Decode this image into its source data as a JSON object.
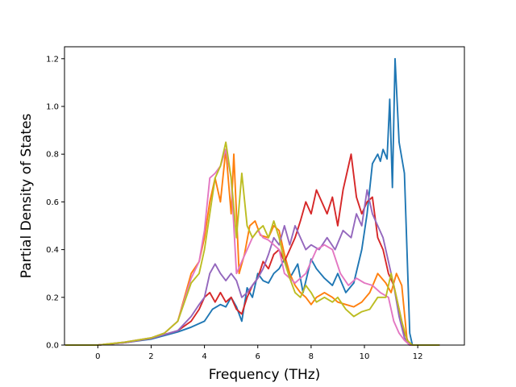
{
  "chart_data": {
    "type": "line",
    "title": "",
    "xlabel": "Frequency (THz)",
    "ylabel": "Partial Density of States",
    "xlim": [
      -1.25,
      13.75
    ],
    "ylim": [
      0.0,
      1.25
    ],
    "xticks": [
      0,
      2,
      4,
      6,
      8,
      10,
      12
    ],
    "yticks": [
      0.0,
      0.2,
      0.4,
      0.6,
      0.8,
      1.0,
      1.2
    ],
    "xtick_labels": [
      "0",
      "2",
      "4",
      "6",
      "8",
      "10",
      "12"
    ],
    "ytick_labels": [
      "0.0",
      "0.2",
      "0.4",
      "0.6",
      "0.8",
      "1.0",
      "1.2"
    ],
    "grid": false,
    "legend": "none",
    "series": [
      {
        "color": "#1f77b4",
        "points": [
          [
            -1.2,
            0
          ],
          [
            0,
            0
          ],
          [
            1,
            0.01
          ],
          [
            2,
            0.025
          ],
          [
            3,
            0.055
          ],
          [
            3.5,
            0.075
          ],
          [
            4,
            0.1
          ],
          [
            4.3,
            0.15
          ],
          [
            4.6,
            0.17
          ],
          [
            4.8,
            0.16
          ],
          [
            5.0,
            0.2
          ],
          [
            5.2,
            0.16
          ],
          [
            5.4,
            0.1
          ],
          [
            5.6,
            0.24
          ],
          [
            5.8,
            0.2
          ],
          [
            6.0,
            0.3
          ],
          [
            6.2,
            0.27
          ],
          [
            6.4,
            0.26
          ],
          [
            6.6,
            0.3
          ],
          [
            6.8,
            0.32
          ],
          [
            7.0,
            0.36
          ],
          [
            7.2,
            0.28
          ],
          [
            7.5,
            0.34
          ],
          [
            7.7,
            0.22
          ],
          [
            8.0,
            0.36
          ],
          [
            8.2,
            0.32
          ],
          [
            8.5,
            0.28
          ],
          [
            8.8,
            0.25
          ],
          [
            9.0,
            0.3
          ],
          [
            9.3,
            0.22
          ],
          [
            9.6,
            0.26
          ],
          [
            9.9,
            0.4
          ],
          [
            10.1,
            0.55
          ],
          [
            10.3,
            0.76
          ],
          [
            10.5,
            0.8
          ],
          [
            10.6,
            0.77
          ],
          [
            10.7,
            0.82
          ],
          [
            10.85,
            0.78
          ],
          [
            10.95,
            1.03
          ],
          [
            11.05,
            0.66
          ],
          [
            11.15,
            1.2
          ],
          [
            11.3,
            0.85
          ],
          [
            11.5,
            0.72
          ],
          [
            11.7,
            0.05
          ],
          [
            11.8,
            0
          ],
          [
            12.8,
            0
          ]
        ]
      },
      {
        "color": "#ff7f0e",
        "points": [
          [
            -1.2,
            0
          ],
          [
            0,
            0
          ],
          [
            1,
            0.012
          ],
          [
            2,
            0.03
          ],
          [
            2.5,
            0.05
          ],
          [
            3,
            0.1
          ],
          [
            3.5,
            0.3
          ],
          [
            3.8,
            0.35
          ],
          [
            4.0,
            0.45
          ],
          [
            4.2,
            0.6
          ],
          [
            4.4,
            0.7
          ],
          [
            4.6,
            0.6
          ],
          [
            4.8,
            0.82
          ],
          [
            5.0,
            0.55
          ],
          [
            5.1,
            0.8
          ],
          [
            5.3,
            0.3
          ],
          [
            5.5,
            0.38
          ],
          [
            5.7,
            0.5
          ],
          [
            5.9,
            0.52
          ],
          [
            6.1,
            0.46
          ],
          [
            6.4,
            0.45
          ],
          [
            6.6,
            0.5
          ],
          [
            6.8,
            0.48
          ],
          [
            7.0,
            0.38
          ],
          [
            7.2,
            0.3
          ],
          [
            7.4,
            0.25
          ],
          [
            7.6,
            0.22
          ],
          [
            7.8,
            0.2
          ],
          [
            8.0,
            0.17
          ],
          [
            8.2,
            0.2
          ],
          [
            8.5,
            0.22
          ],
          [
            8.8,
            0.2
          ],
          [
            9.0,
            0.18
          ],
          [
            9.3,
            0.17
          ],
          [
            9.6,
            0.16
          ],
          [
            9.9,
            0.18
          ],
          [
            10.2,
            0.22
          ],
          [
            10.5,
            0.3
          ],
          [
            10.8,
            0.26
          ],
          [
            11.0,
            0.22
          ],
          [
            11.2,
            0.3
          ],
          [
            11.4,
            0.25
          ],
          [
            11.6,
            0.02
          ],
          [
            11.8,
            0
          ],
          [
            12.8,
            0
          ]
        ]
      },
      {
        "color": "#d62728",
        "points": [
          [
            -1.2,
            0
          ],
          [
            0,
            0
          ],
          [
            1,
            0.01
          ],
          [
            2,
            0.028
          ],
          [
            3,
            0.06
          ],
          [
            3.5,
            0.1
          ],
          [
            3.8,
            0.15
          ],
          [
            4.0,
            0.2
          ],
          [
            4.2,
            0.22
          ],
          [
            4.4,
            0.18
          ],
          [
            4.6,
            0.22
          ],
          [
            4.8,
            0.18
          ],
          [
            5.0,
            0.2
          ],
          [
            5.2,
            0.15
          ],
          [
            5.4,
            0.13
          ],
          [
            5.6,
            0.2
          ],
          [
            5.8,
            0.25
          ],
          [
            6.0,
            0.28
          ],
          [
            6.2,
            0.35
          ],
          [
            6.4,
            0.32
          ],
          [
            6.6,
            0.38
          ],
          [
            6.8,
            0.4
          ],
          [
            7.0,
            0.35
          ],
          [
            7.2,
            0.4
          ],
          [
            7.4,
            0.45
          ],
          [
            7.6,
            0.52
          ],
          [
            7.8,
            0.6
          ],
          [
            8.0,
            0.55
          ],
          [
            8.2,
            0.65
          ],
          [
            8.4,
            0.6
          ],
          [
            8.6,
            0.55
          ],
          [
            8.8,
            0.62
          ],
          [
            9.0,
            0.5
          ],
          [
            9.2,
            0.65
          ],
          [
            9.4,
            0.75
          ],
          [
            9.5,
            0.8
          ],
          [
            9.7,
            0.62
          ],
          [
            9.9,
            0.55
          ],
          [
            10.1,
            0.6
          ],
          [
            10.3,
            0.62
          ],
          [
            10.5,
            0.45
          ],
          [
            10.7,
            0.4
          ],
          [
            10.9,
            0.3
          ],
          [
            11.1,
            0.25
          ],
          [
            11.3,
            0.15
          ],
          [
            11.5,
            0.05
          ],
          [
            11.7,
            0
          ],
          [
            12.8,
            0
          ]
        ]
      },
      {
        "color": "#9467bd",
        "points": [
          [
            -1.2,
            0
          ],
          [
            0,
            0
          ],
          [
            1,
            0.01
          ],
          [
            2,
            0.028
          ],
          [
            3,
            0.06
          ],
          [
            3.5,
            0.12
          ],
          [
            3.8,
            0.17
          ],
          [
            4.0,
            0.2
          ],
          [
            4.2,
            0.3
          ],
          [
            4.4,
            0.34
          ],
          [
            4.6,
            0.3
          ],
          [
            4.8,
            0.27
          ],
          [
            5.0,
            0.3
          ],
          [
            5.2,
            0.27
          ],
          [
            5.4,
            0.2
          ],
          [
            5.6,
            0.22
          ],
          [
            5.8,
            0.25
          ],
          [
            6.0,
            0.28
          ],
          [
            6.2,
            0.32
          ],
          [
            6.4,
            0.38
          ],
          [
            6.6,
            0.45
          ],
          [
            6.8,
            0.42
          ],
          [
            7.0,
            0.5
          ],
          [
            7.2,
            0.42
          ],
          [
            7.4,
            0.5
          ],
          [
            7.6,
            0.45
          ],
          [
            7.8,
            0.4
          ],
          [
            8.0,
            0.42
          ],
          [
            8.3,
            0.4
          ],
          [
            8.6,
            0.45
          ],
          [
            8.9,
            0.4
          ],
          [
            9.2,
            0.48
          ],
          [
            9.5,
            0.45
          ],
          [
            9.7,
            0.55
          ],
          [
            9.9,
            0.5
          ],
          [
            10.1,
            0.65
          ],
          [
            10.3,
            0.55
          ],
          [
            10.5,
            0.5
          ],
          [
            10.7,
            0.45
          ],
          [
            10.9,
            0.35
          ],
          [
            11.1,
            0.25
          ],
          [
            11.3,
            0.12
          ],
          [
            11.5,
            0.03
          ],
          [
            11.7,
            0
          ],
          [
            12.8,
            0
          ]
        ]
      },
      {
        "color": "#e377c2",
        "points": [
          [
            -1.2,
            0
          ],
          [
            0,
            0
          ],
          [
            1,
            0.012
          ],
          [
            2,
            0.03
          ],
          [
            2.5,
            0.05
          ],
          [
            3,
            0.1
          ],
          [
            3.5,
            0.28
          ],
          [
            3.8,
            0.35
          ],
          [
            4.0,
            0.48
          ],
          [
            4.2,
            0.7
          ],
          [
            4.4,
            0.72
          ],
          [
            4.6,
            0.75
          ],
          [
            4.8,
            0.82
          ],
          [
            5.0,
            0.7
          ],
          [
            5.2,
            0.3
          ],
          [
            5.4,
            0.35
          ],
          [
            5.6,
            0.4
          ],
          [
            5.8,
            0.45
          ],
          [
            6.0,
            0.48
          ],
          [
            6.2,
            0.45
          ],
          [
            6.4,
            0.44
          ],
          [
            6.6,
            0.42
          ],
          [
            6.8,
            0.4
          ],
          [
            7.0,
            0.3
          ],
          [
            7.2,
            0.28
          ],
          [
            7.4,
            0.26
          ],
          [
            7.6,
            0.28
          ],
          [
            7.8,
            0.3
          ],
          [
            8.0,
            0.35
          ],
          [
            8.2,
            0.4
          ],
          [
            8.5,
            0.42
          ],
          [
            8.8,
            0.4
          ],
          [
            9.1,
            0.3
          ],
          [
            9.4,
            0.25
          ],
          [
            9.7,
            0.28
          ],
          [
            10.0,
            0.26
          ],
          [
            10.3,
            0.25
          ],
          [
            10.6,
            0.22
          ],
          [
            10.9,
            0.2
          ],
          [
            11.1,
            0.1
          ],
          [
            11.3,
            0.05
          ],
          [
            11.5,
            0.02
          ],
          [
            11.7,
            0
          ],
          [
            12.8,
            0
          ]
        ]
      },
      {
        "color": "#bcbd22",
        "points": [
          [
            -1.2,
            0
          ],
          [
            0,
            0
          ],
          [
            1,
            0.012
          ],
          [
            2,
            0.03
          ],
          [
            2.5,
            0.05
          ],
          [
            3,
            0.1
          ],
          [
            3.5,
            0.26
          ],
          [
            3.8,
            0.3
          ],
          [
            4.0,
            0.4
          ],
          [
            4.2,
            0.55
          ],
          [
            4.4,
            0.7
          ],
          [
            4.6,
            0.75
          ],
          [
            4.8,
            0.85
          ],
          [
            5.0,
            0.7
          ],
          [
            5.2,
            0.45
          ],
          [
            5.4,
            0.72
          ],
          [
            5.6,
            0.5
          ],
          [
            5.8,
            0.45
          ],
          [
            6.0,
            0.48
          ],
          [
            6.2,
            0.5
          ],
          [
            6.4,
            0.45
          ],
          [
            6.6,
            0.52
          ],
          [
            6.8,
            0.45
          ],
          [
            7.0,
            0.35
          ],
          [
            7.2,
            0.28
          ],
          [
            7.4,
            0.22
          ],
          [
            7.6,
            0.2
          ],
          [
            7.8,
            0.25
          ],
          [
            8.0,
            0.22
          ],
          [
            8.2,
            0.18
          ],
          [
            8.5,
            0.2
          ],
          [
            8.8,
            0.18
          ],
          [
            9.0,
            0.2
          ],
          [
            9.3,
            0.15
          ],
          [
            9.6,
            0.12
          ],
          [
            9.9,
            0.14
          ],
          [
            10.2,
            0.15
          ],
          [
            10.5,
            0.2
          ],
          [
            10.8,
            0.2
          ],
          [
            11.0,
            0.3
          ],
          [
            11.2,
            0.2
          ],
          [
            11.4,
            0.1
          ],
          [
            11.6,
            0.02
          ],
          [
            11.8,
            0
          ],
          [
            12.8,
            0
          ]
        ]
      }
    ]
  }
}
